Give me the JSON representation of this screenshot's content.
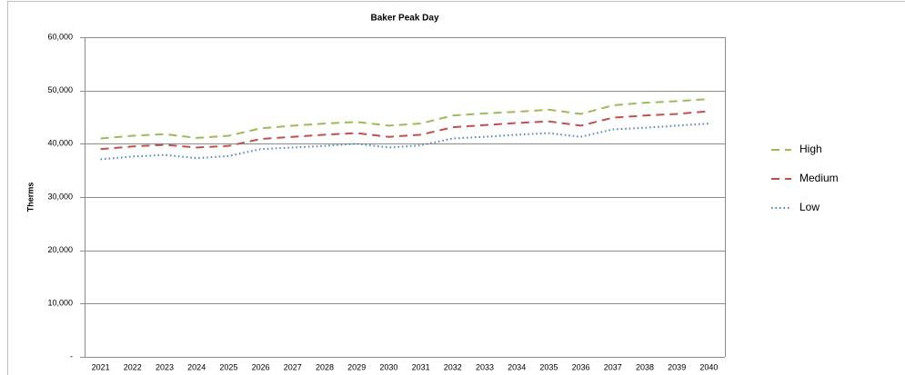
{
  "chart_data": {
    "type": "line",
    "title": "Baker Peak Day",
    "ylabel": "Therms",
    "categories": [
      "2021",
      "2022",
      "2023",
      "2024",
      "2025",
      "2026",
      "2027",
      "2028",
      "2029",
      "2030",
      "2031",
      "2032",
      "2033",
      "2034",
      "2035",
      "2036",
      "2037",
      "2038",
      "2039",
      "2040"
    ],
    "series": [
      {
        "name": "High",
        "color": "#9bbb59",
        "line_style": "dashed",
        "values": [
          41000,
          41500,
          41800,
          41100,
          41500,
          42900,
          43400,
          43800,
          44100,
          43400,
          43800,
          45300,
          45700,
          46000,
          46400,
          45600,
          47200,
          47700,
          48000,
          48400
        ]
      },
      {
        "name": "Medium",
        "color": "#c0504d",
        "line_style": "dashed",
        "values": [
          39000,
          39500,
          39800,
          39300,
          39600,
          40900,
          41300,
          41700,
          42000,
          41300,
          41700,
          43100,
          43500,
          43900,
          44200,
          43400,
          44900,
          45300,
          45600,
          46100
        ]
      },
      {
        "name": "Low",
        "color": "#4f81bd",
        "line_style": "dotted",
        "values": [
          37100,
          37600,
          37900,
          37300,
          37700,
          39000,
          39300,
          39600,
          40000,
          39300,
          39700,
          41000,
          41300,
          41700,
          42000,
          41300,
          42700,
          43000,
          43400,
          43800
        ]
      }
    ],
    "ylim": [
      0,
      60000
    ],
    "yticks": [
      {
        "value": 0,
        "label": "-"
      },
      {
        "value": 10000,
        "label": "10,000"
      },
      {
        "value": 20000,
        "label": "20,000"
      },
      {
        "value": 30000,
        "label": "30,000"
      },
      {
        "value": 40000,
        "label": "40,000"
      },
      {
        "value": 50000,
        "label": "50,000"
      },
      {
        "value": 60000,
        "label": "60,000"
      }
    ],
    "grid": true,
    "legend": "right"
  }
}
